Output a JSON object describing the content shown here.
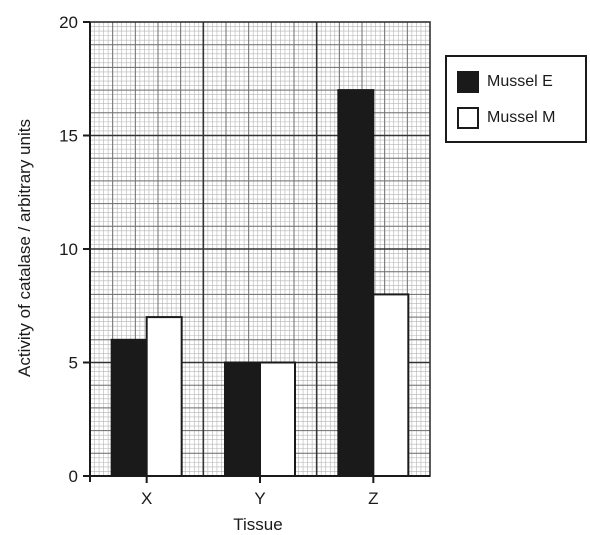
{
  "chart_data": {
    "type": "bar",
    "categories": [
      "X",
      "Y",
      "Z"
    ],
    "series": [
      {
        "name": "Mussel E",
        "values": [
          6,
          5,
          17
        ],
        "color": "#1a1a1a"
      },
      {
        "name": "Mussel M",
        "values": [
          7,
          5,
          8
        ],
        "color": "#ffffff"
      }
    ],
    "title": "",
    "xlabel": "Tissue",
    "ylabel": "Activity of catalase / arbitrary units",
    "ylim": [
      0,
      20
    ],
    "yticks": [
      0,
      5,
      10,
      15,
      20
    ],
    "grid": true,
    "legend_position": "right"
  }
}
